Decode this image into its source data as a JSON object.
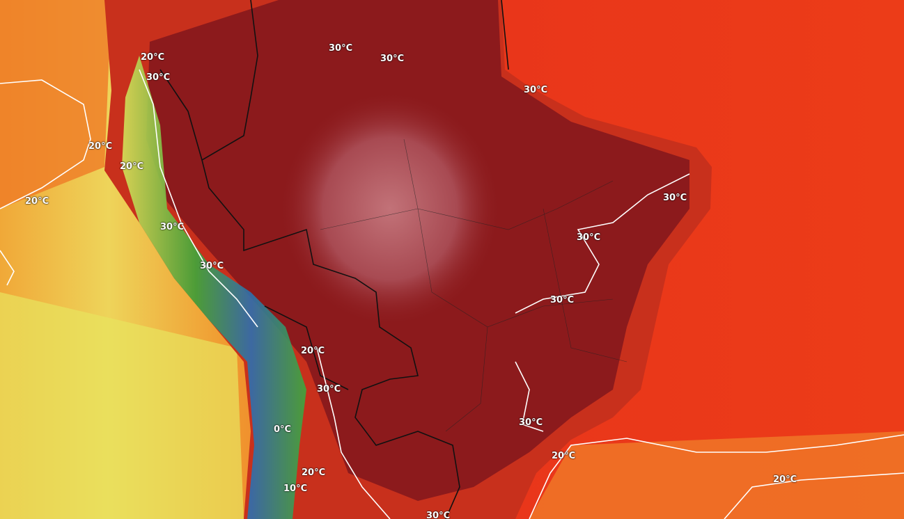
{
  "map": {
    "title": "",
    "colors": {
      "pacific_far": "#e9e55c",
      "pacific_near": "#f08a2a",
      "atlantic": "#e9361a",
      "land_hot": "#8c1a1c",
      "land_center": "#b8606a",
      "land_coast": "#c8301c",
      "andes_green": "#3fa83a",
      "andes_yellow": "#d6e25a",
      "andes_blue": "#2d6fb0",
      "contour": "#ffffff",
      "border": "#111111"
    },
    "contour_labels": [
      "30°C",
      "30°C",
      "30°C",
      "30°C",
      "30°C",
      "30°C",
      "30°C",
      "30°C",
      "30°C",
      "30°C",
      "30°C",
      "30°C",
      "20°C",
      "20°C",
      "20°C",
      "20°C",
      "20°C",
      "20°C",
      "20°C",
      "20°C",
      "10°C",
      "0°C"
    ]
  }
}
